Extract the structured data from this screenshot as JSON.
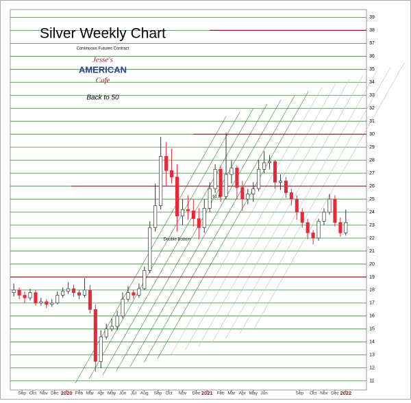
{
  "chart_data": {
    "type": "candlestick",
    "title": "Silver Weekly Chart",
    "subtitle": "Continuous Futures Contract",
    "logo": [
      "Jesse's",
      "AMERICAN",
      "Cafe"
    ],
    "note": "Back to 50",
    "x": [
      0,
      2,
      4,
      6,
      8,
      10,
      12,
      14,
      16,
      18,
      20,
      22,
      24,
      26,
      28,
      30,
      32,
      34,
      36,
      38,
      40,
      42,
      44,
      46,
      48,
      50,
      52,
      54,
      56,
      58,
      60,
      62,
      64,
      66,
      68,
      70,
      72,
      74,
      76,
      78,
      80,
      82,
      84,
      86,
      88,
      90,
      92,
      94,
      96,
      98,
      100,
      102,
      104,
      106,
      108,
      110,
      112,
      114,
      116,
      118,
      120,
      122
    ],
    "open": [
      17.8,
      18.0,
      17.6,
      17.4,
      17.8,
      17.0,
      17.1,
      16.9,
      17.0,
      17.6,
      17.9,
      18.1,
      17.8,
      17.6,
      18.0,
      16.5,
      12.5,
      14.4,
      15.0,
      15.2,
      16.0,
      17.3,
      17.8,
      17.6,
      18.1,
      19.5,
      22.8,
      24.5,
      28.3,
      27.2,
      26.7,
      23.7,
      24.2,
      24.1,
      23.5,
      22.8,
      24.3,
      25.8,
      27.3,
      25.2,
      26.9,
      27.4,
      25.9,
      25.0,
      25.4,
      25.8,
      27.3,
      27.8,
      27.9,
      26.3,
      26.4,
      25.5,
      25.0,
      24.0,
      23.2,
      22.4,
      22.0,
      23.3,
      24.0,
      25.0,
      23.2,
      22.4
    ],
    "high": [
      18.5,
      18.2,
      17.9,
      18.1,
      18.0,
      17.4,
      17.3,
      17.3,
      17.9,
      18.2,
      18.6,
      18.4,
      18.0,
      18.9,
      18.4,
      16.9,
      14.9,
      15.4,
      15.8,
      16.4,
      17.8,
      18.3,
      18.0,
      18.5,
      19.8,
      23.3,
      26.2,
      29.8,
      29.4,
      28.9,
      27.7,
      25.0,
      25.3,
      25.0,
      24.3,
      25.0,
      26.3,
      27.7,
      27.6,
      30.1,
      28.0,
      27.6,
      26.4,
      25.8,
      26.3,
      28.0,
      28.7,
      28.4,
      28.0,
      26.9,
      26.7,
      25.8,
      25.3,
      24.3,
      23.5,
      22.6,
      23.5,
      24.3,
      25.4,
      25.3,
      23.6,
      24.2
    ],
    "low": [
      17.5,
      17.3,
      17.0,
      17.2,
      16.8,
      16.8,
      16.6,
      16.7,
      16.9,
      17.4,
      17.7,
      17.5,
      17.3,
      17.4,
      16.2,
      11.7,
      12.0,
      14.2,
      14.8,
      14.9,
      15.8,
      17.1,
      17.3,
      17.4,
      18.0,
      19.3,
      22.5,
      24.2,
      26.0,
      26.2,
      22.5,
      23.0,
      23.4,
      22.9,
      21.9,
      22.4,
      24.0,
      25.5,
      24.8,
      25.0,
      26.2,
      25.0,
      24.1,
      24.6,
      24.8,
      25.6,
      27.0,
      27.3,
      25.8,
      25.7,
      25.1,
      24.5,
      23.4,
      22.8,
      21.9,
      21.5,
      21.8,
      23.0,
      23.8,
      22.9,
      22.1,
      22.2
    ],
    "close": [
      18.0,
      17.6,
      17.4,
      17.8,
      17.0,
      17.1,
      16.9,
      17.0,
      17.6,
      17.9,
      18.1,
      17.8,
      17.6,
      18.0,
      16.5,
      12.5,
      14.4,
      15.0,
      15.2,
      16.0,
      17.3,
      17.8,
      17.6,
      18.1,
      19.5,
      22.8,
      24.5,
      28.3,
      27.2,
      26.7,
      23.7,
      24.2,
      24.1,
      23.5,
      22.8,
      24.3,
      25.8,
      27.3,
      25.2,
      26.9,
      27.4,
      25.9,
      25.0,
      25.4,
      25.8,
      27.3,
      27.8,
      27.9,
      26.3,
      26.4,
      25.5,
      25.0,
      24.0,
      23.2,
      22.4,
      22.0,
      23.3,
      24.0,
      25.0,
      23.2,
      22.4,
      23.2
    ],
    "up_color": "#ffffff",
    "down_color": "#e8283a",
    "grid_color": "#2e8b2e",
    "xlim": [
      -1.3,
      129.6
    ],
    "ylim": [
      10.3,
      39.6
    ],
    "xticks": [
      {
        "value": 3,
        "label": "Sep"
      },
      {
        "value": 7,
        "label": "Oct"
      },
      {
        "value": 11,
        "label": "Nov"
      },
      {
        "value": 15,
        "label": "Dec"
      },
      {
        "value": 19.4,
        "label": "2020"
      },
      {
        "value": 24,
        "label": "Feb"
      },
      {
        "value": 28,
        "label": "Mar"
      },
      {
        "value": 32,
        "label": "Apr"
      },
      {
        "value": 36,
        "label": "May"
      },
      {
        "value": 40,
        "label": "Jun"
      },
      {
        "value": 44,
        "label": "Jul"
      },
      {
        "value": 48,
        "label": "Aug"
      },
      {
        "value": 53,
        "label": "Sep"
      },
      {
        "value": 57,
        "label": "Oct"
      },
      {
        "value": 62,
        "label": "Nov"
      },
      {
        "value": 67,
        "label": "Dec"
      },
      {
        "value": 71,
        "label": "2021"
      },
      {
        "value": 76,
        "label": "Feb"
      },
      {
        "value": 80,
        "label": "Mar"
      },
      {
        "value": 84,
        "label": "Apr"
      },
      {
        "value": 88,
        "label": "May"
      },
      {
        "value": 92,
        "label": "Jun"
      },
      {
        "value": 105,
        "label": "Sep"
      },
      {
        "value": 110,
        "label": "Oct"
      },
      {
        "value": 114,
        "label": "Nov"
      },
      {
        "value": 118,
        "label": "Dec"
      },
      {
        "value": 122,
        "label": "2022"
      }
    ],
    "yticks": [
      11,
      12,
      13,
      14,
      15,
      16,
      17,
      18,
      19,
      20,
      21,
      22,
      23,
      24,
      25,
      26,
      27,
      28,
      29,
      30,
      31,
      32,
      33,
      34,
      35,
      36,
      37,
      38,
      39
    ],
    "grid": true,
    "reference_lines": [
      {
        "value": 38,
        "from": 72,
        "color": "#8b1a1a"
      },
      {
        "value": 30,
        "from": 66,
        "color": "#8b1a1a"
      },
      {
        "value": 26,
        "from": 21,
        "color": "#8b1a1a"
      },
      {
        "value": 19,
        "from": -1.3,
        "color": "#8b1a1a"
      }
    ],
    "annotations": [
      {
        "text": "Double Bottom",
        "x": 60,
        "y": 21.9
      },
      {
        "text": "61.8",
        "x": 74.5,
        "y": 25.2
      }
    ]
  }
}
